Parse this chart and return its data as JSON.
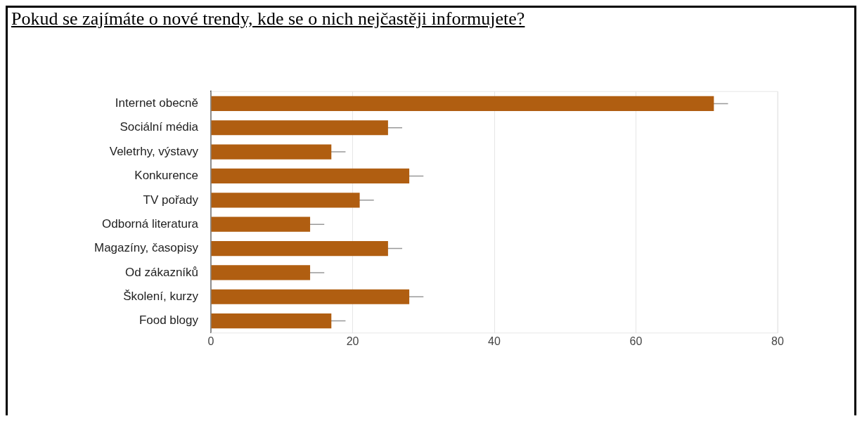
{
  "chart_data": {
    "type": "bar",
    "title": "Pokud se zajímáte o nové trendy, kde se o nich nejčastěji informujete?",
    "orientation": "horizontal",
    "categories": [
      "Internet obecně",
      "Sociální média",
      "Veletrhy, výstavy",
      "Konkurence",
      "TV pořady",
      "Odborná literatura",
      "Magazíny, časopisy",
      "Od zákazníků",
      "Školení, kurzy",
      "Food blogy"
    ],
    "values": [
      71,
      25,
      17,
      28,
      21,
      14,
      25,
      14,
      28,
      17
    ],
    "errors": [
      2,
      2,
      2,
      2,
      2,
      2,
      2,
      2,
      2,
      2
    ],
    "color": "#b05e11",
    "xlim": [
      0,
      80
    ],
    "xticks": [
      0,
      20,
      40,
      60,
      80
    ],
    "grid": "x",
    "legend": false
  }
}
